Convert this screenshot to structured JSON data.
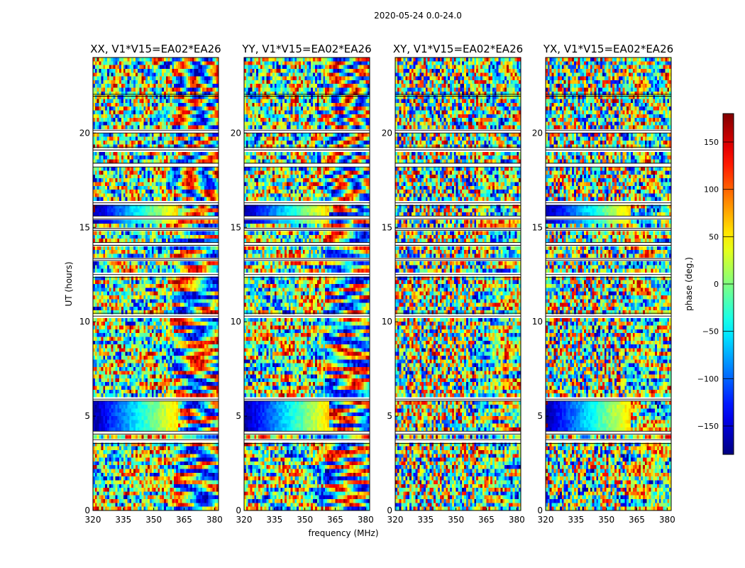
{
  "chart_data": {
    "type": "heatmap",
    "suptitle": "2020-05-24 0.0-24.0",
    "xlabel": "frequency (MHz)",
    "ylabel": "UT (hours)",
    "xlim": [
      320,
      382
    ],
    "ylim": [
      0,
      24
    ],
    "x_ticks": [
      320,
      335,
      350,
      365,
      380
    ],
    "y_ticks": [
      0,
      5,
      10,
      15,
      20
    ],
    "colorbar": {
      "label": "phase (deg.)",
      "range": [
        -180,
        180
      ],
      "ticks": [
        -150,
        -100,
        -50,
        0,
        50,
        100,
        150
      ],
      "tick_labels": [
        "−150",
        "−100",
        "−50",
        "0",
        "50",
        "100",
        "150"
      ],
      "colormap": "jet"
    },
    "panels": [
      {
        "title": "XX, V1*V15=EA02*EA26",
        "polarization": "XX"
      },
      {
        "title": "YY, V1*V15=EA02*EA26",
        "polarization": "YY"
      },
      {
        "title": "XY, V1*V15=EA02*EA26",
        "polarization": "XY"
      },
      {
        "title": "YX, V1*V15=EA02*EA26",
        "polarization": "YX"
      }
    ],
    "flagged_time_ranges_hours": [
      [
        3.55,
        3.75
      ],
      [
        4.05,
        4.2
      ],
      [
        5.8,
        5.9
      ],
      [
        10.3,
        10.45
      ],
      [
        12.35,
        12.5
      ],
      [
        13.25,
        13.35
      ],
      [
        14.05,
        14.2
      ],
      [
        14.85,
        14.95
      ],
      [
        15.45,
        15.6
      ],
      [
        16.15,
        16.3
      ],
      [
        18.2,
        18.4
      ],
      [
        19.1,
        19.25
      ],
      [
        20.0,
        20.15
      ],
      [
        21.95,
        22.05
      ]
    ],
    "features": {
      "coherent_hours": [
        [
          4.0,
          5.7
        ],
        [
          15.2,
          16.3
        ]
      ],
      "coherent_freq_mhz": [
        320,
        362
      ]
    }
  }
}
